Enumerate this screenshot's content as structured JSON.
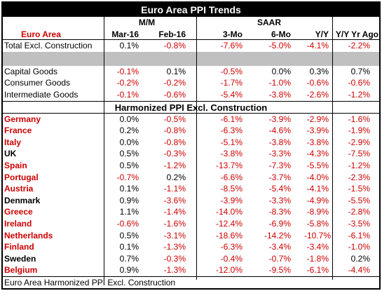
{
  "title": "Euro Area PPI Trends",
  "group_headers": {
    "mm": "M/M",
    "saar": "SAAR"
  },
  "columns": [
    "Euro Area",
    "Mar-16",
    "Feb-16",
    "3-Mo",
    "6-Mo",
    "Y/Y",
    "Y/Y Yr Ago"
  ],
  "top_rows": [
    {
      "label": "Total Excl. Construction",
      "values": [
        "0.1%",
        "-0.8%",
        "-7.6%",
        "-5.0%",
        "-4.1%",
        "-2.2%"
      ]
    }
  ],
  "goods_rows": [
    {
      "label": "Capital Goods",
      "values": [
        "-0.1%",
        "0.1%",
        "-0.5%",
        "0.0%",
        "0.3%",
        "0.7%"
      ]
    },
    {
      "label": "Consumer Goods",
      "values": [
        "-0.2%",
        "-0.2%",
        "-1.7%",
        "-1.0%",
        "-0.6%",
        "-0.6%"
      ]
    },
    {
      "label": "Intermediate Goods",
      "values": [
        "-0.1%",
        "-0.6%",
        "-5.4%",
        "-3.8%",
        "-2.6%",
        "-1.2%"
      ]
    }
  ],
  "section_title": "Harmonized PPI Excl. Construction",
  "country_rows": [
    {
      "label": "Germany",
      "euro": true,
      "values": [
        "0.0%",
        "-0.5%",
        "-6.1%",
        "-3.9%",
        "-2.9%",
        "-1.6%"
      ]
    },
    {
      "label": "France",
      "euro": true,
      "values": [
        "0.2%",
        "-0.8%",
        "-6.3%",
        "-4.6%",
        "-3.9%",
        "-1.9%"
      ]
    },
    {
      "label": "Italy",
      "euro": true,
      "values": [
        "0.0%",
        "-0.8%",
        "-5.1%",
        "-3.8%",
        "-3.8%",
        "-2.9%"
      ]
    },
    {
      "label": "UK",
      "euro": false,
      "values": [
        "0.5%",
        "-0.3%",
        "-3.8%",
        "-3.3%",
        "-4.3%",
        "-7.5%"
      ]
    },
    {
      "label": "Spain",
      "euro": true,
      "values": [
        "0.5%",
        "-1.2%",
        "-13.7%",
        "-7.3%",
        "-5.5%",
        "-1.2%"
      ]
    },
    {
      "label": "Portugal",
      "euro": true,
      "values": [
        "-0.7%",
        "0.2%",
        "-6.6%",
        "-3.7%",
        "-4.0%",
        "-2.3%"
      ]
    },
    {
      "label": "Austria",
      "euro": true,
      "values": [
        "0.1%",
        "-1.1%",
        "-8.5%",
        "-5.4%",
        "-4.1%",
        "-1.5%"
      ]
    },
    {
      "label": "Denmark",
      "euro": false,
      "values": [
        "0.9%",
        "-3.6%",
        "-3.9%",
        "-3.3%",
        "-4.9%",
        "-5.5%"
      ]
    },
    {
      "label": "Greece",
      "euro": true,
      "values": [
        "1.1%",
        "-1.4%",
        "-14.0%",
        "-8.3%",
        "-8.9%",
        "-2.8%"
      ]
    },
    {
      "label": "Ireland",
      "euro": true,
      "values": [
        "-0.6%",
        "-1.6%",
        "-12.4%",
        "-6.9%",
        "-5.8%",
        "-3.5%"
      ]
    },
    {
      "label": "Netherlands",
      "euro": true,
      "values": [
        "0.5%",
        "-3.1%",
        "-18.6%",
        "-14.2%",
        "-10.7%",
        "-6.1%"
      ]
    },
    {
      "label": "Finland",
      "euro": true,
      "values": [
        "0.1%",
        "-1.3%",
        "-6.3%",
        "-3.4%",
        "-3.4%",
        "-1.0%"
      ]
    },
    {
      "label": "Sweden",
      "euro": false,
      "values": [
        "0.7%",
        "-0.3%",
        "-0.4%",
        "-0.7%",
        "-1.8%",
        "0.2%"
      ]
    },
    {
      "label": "Belgium",
      "euro": true,
      "values": [
        "0.9%",
        "-1.3%",
        "-12.0%",
        "-9.5%",
        "-6.1%",
        "-4.4%"
      ]
    }
  ],
  "footer": "Euro Area Harmonized PPI Excl. Construction",
  "colors": {
    "negative": "#cc0000",
    "euro_member": "#cc0000",
    "header_bg": "#000000",
    "band": "#c0c0c0"
  }
}
